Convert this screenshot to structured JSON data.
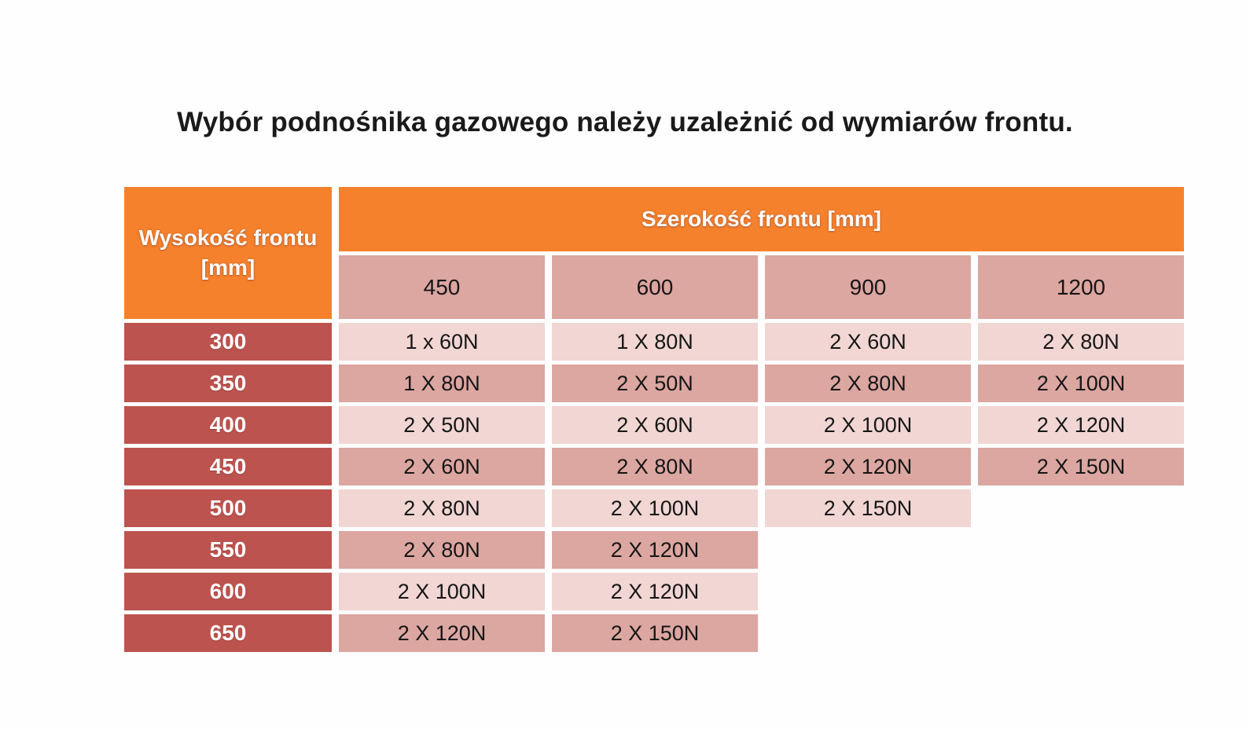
{
  "title": "Wybór podnośnika gazowego należy uzależnić od wymiarów frontu.",
  "table": {
    "corner_header": "Wysokość frontu [mm]",
    "corner_header_lines": [
      "Wysokość frontu",
      "[mm]"
    ],
    "top_header": "Szerokość frontu [mm]",
    "column_headers": [
      "450",
      "600",
      "900",
      "1200"
    ],
    "rows": [
      {
        "height": "300",
        "values": [
          "1 x 60N",
          "1 X 80N",
          "2 X 60N",
          "2 X 80N"
        ]
      },
      {
        "height": "350",
        "values": [
          "1 X 80N",
          "2 X 50N",
          "2 X 80N",
          "2 X 100N"
        ]
      },
      {
        "height": "400",
        "values": [
          "2 X 50N",
          "2 X 60N",
          "2 X 100N",
          "2 X 120N"
        ]
      },
      {
        "height": "450",
        "values": [
          "2 X 60N",
          "2 X 80N",
          "2 X 120N",
          "2 X 150N"
        ]
      },
      {
        "height": "500",
        "values": [
          "2 X 80N",
          "2 X 100N",
          "2 X 150N",
          ""
        ]
      },
      {
        "height": "550",
        "values": [
          "2 X 80N",
          "2 X 120N",
          "",
          ""
        ]
      },
      {
        "height": "600",
        "values": [
          "2 X 100N",
          "2 X 120N",
          "",
          ""
        ]
      },
      {
        "height": "650",
        "values": [
          "2 X 120N",
          "2 X 150N",
          "",
          ""
        ]
      }
    ]
  },
  "colors": {
    "orange": "#F6812C",
    "red": "#BD534E",
    "pink_dark": "#DCA6A1",
    "pink_light": "#F1D6D3",
    "text_dark": "#161616",
    "header_text": "#FFFFFF",
    "title": "#1A1A1A",
    "page_bg": "#FEFEFE"
  }
}
